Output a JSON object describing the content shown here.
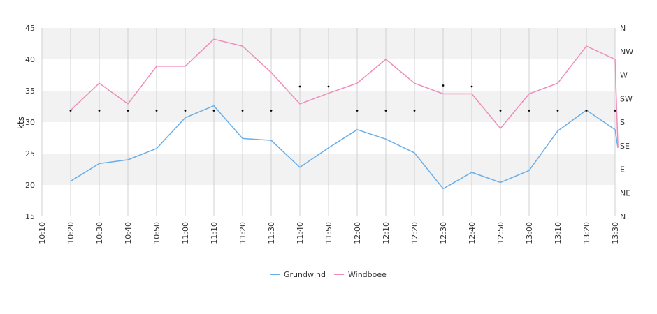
{
  "chart_data": {
    "type": "line",
    "title": "",
    "xlabel": "",
    "ylabel": "kts",
    "ylim": [
      15,
      45
    ],
    "yticks": [
      15,
      20,
      25,
      30,
      35,
      40,
      45
    ],
    "x": [
      "10:10",
      "10:20",
      "10:30",
      "10:40",
      "10:50",
      "11:00",
      "11:10",
      "11:20",
      "11:30",
      "11:40",
      "11:50",
      "12:00",
      "12:10",
      "12:20",
      "12:30",
      "12:40",
      "12:50",
      "13:00",
      "13:10",
      "13:20",
      "13:30"
    ],
    "series": [
      {
        "name": "Grundwind",
        "color": "#6aaee8",
        "points": [
          [
            "10:20",
            20.6
          ],
          [
            "10:30",
            23.4
          ],
          [
            "10:40",
            24.0
          ],
          [
            "10:50",
            25.8
          ],
          [
            "11:00",
            30.7
          ],
          [
            "11:10",
            32.6
          ],
          [
            "11:20",
            27.4
          ],
          [
            "11:30",
            27.1
          ],
          [
            "11:40",
            22.8
          ],
          [
            "11:50",
            25.9
          ],
          [
            "12:00",
            28.8
          ],
          [
            "12:10",
            27.3
          ],
          [
            "12:20",
            25.1
          ],
          [
            "12:30",
            19.4
          ],
          [
            "12:40",
            22.0
          ],
          [
            "12:50",
            20.4
          ],
          [
            "13:00",
            22.3
          ],
          [
            "13:10",
            28.6
          ],
          [
            "13:20",
            31.9
          ],
          [
            "13:30",
            28.8
          ],
          [
            "13:31",
            25.9
          ]
        ]
      },
      {
        "name": "Windboee",
        "color": "#f08cba",
        "points": [
          [
            "10:20",
            31.9
          ],
          [
            "10:30",
            36.2
          ],
          [
            "10:40",
            32.9
          ],
          [
            "10:50",
            38.9
          ],
          [
            "11:00",
            38.9
          ],
          [
            "11:10",
            43.2
          ],
          [
            "11:20",
            42.1
          ],
          [
            "11:30",
            37.9
          ],
          [
            "11:40",
            32.9
          ],
          [
            "11:50",
            34.6
          ],
          [
            "12:00",
            36.2
          ],
          [
            "12:10",
            40.0
          ],
          [
            "12:20",
            36.2
          ],
          [
            "12:30",
            34.5
          ],
          [
            "12:40",
            34.5
          ],
          [
            "12:50",
            29.0
          ],
          [
            "13:00",
            34.5
          ],
          [
            "13:10",
            36.2
          ],
          [
            "13:20",
            42.1
          ],
          [
            "13:30",
            40.0
          ],
          [
            "13:31",
            26.1
          ]
        ]
      }
    ],
    "direction_axis": {
      "labels": [
        "N",
        "NE",
        "E",
        "SE",
        "S",
        "SW",
        "W",
        "NW",
        "N"
      ],
      "points": [
        [
          "10:20",
          202
        ],
        [
          "10:30",
          202
        ],
        [
          "10:40",
          202
        ],
        [
          "10:50",
          202
        ],
        [
          "11:00",
          202
        ],
        [
          "11:10",
          202
        ],
        [
          "11:20",
          202
        ],
        [
          "11:30",
          202
        ],
        [
          "11:40",
          248
        ],
        [
          "11:50",
          248
        ],
        [
          "12:00",
          202
        ],
        [
          "12:10",
          202
        ],
        [
          "12:20",
          202
        ],
        [
          "12:30",
          250
        ],
        [
          "12:40",
          248
        ],
        [
          "12:50",
          202
        ],
        [
          "13:00",
          202
        ],
        [
          "13:10",
          202
        ],
        [
          "13:20",
          202
        ],
        [
          "13:30",
          202
        ]
      ]
    },
    "bands": "alternating",
    "grid": true,
    "legend_position": "bottom"
  }
}
